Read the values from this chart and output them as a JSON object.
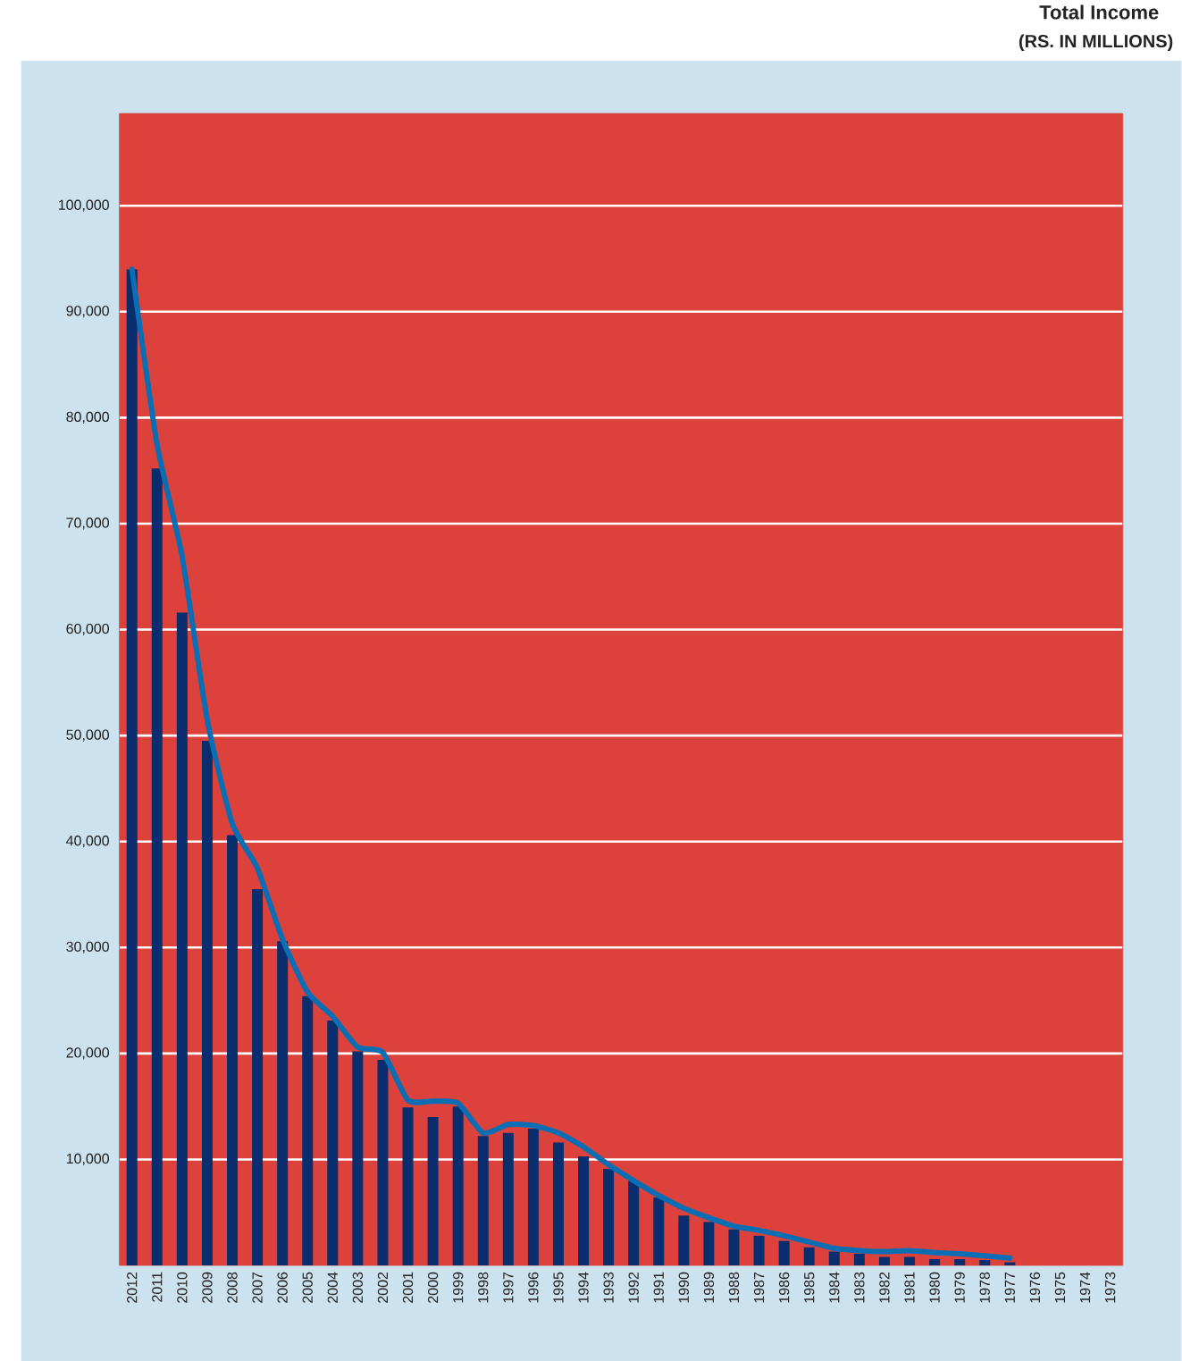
{
  "chart_data": {
    "type": "bar",
    "title": "Total Income",
    "subtitle": "(RS. IN MILLIONS)",
    "categories": [
      "2012",
      "2011",
      "2010",
      "2009",
      "2008",
      "2007",
      "2006",
      "2005",
      "2004",
      "2003",
      "2002",
      "2001",
      "2000",
      "1999",
      "1998",
      "1997",
      "1996",
      "1995",
      "1994",
      "1993",
      "1992",
      "1991",
      "1990",
      "1989",
      "1988",
      "1987",
      "1986",
      "1985",
      "1984",
      "1983",
      "1982",
      "1981",
      "1980",
      "1979",
      "1978",
      "1977",
      "1976",
      "1975",
      "1974",
      "1973"
    ],
    "series": [
      {
        "color": "#0a2d6e",
        "values": [
          94000,
          75200,
          61600,
          49500,
          40600,
          35500,
          30600,
          25400,
          23100,
          20200,
          19400,
          14900,
          14000,
          15000,
          12200,
          12500,
          12900,
          11600,
          10300,
          9100,
          8000,
          6400,
          4700,
          4100,
          3400,
          2800,
          2300,
          1700,
          1300,
          1100,
          800,
          800,
          600,
          600,
          500,
          300,
          null,
          null,
          null,
          null
        ]
      },
      {
        "type": "line",
        "color": "#0a6eb4",
        "line_style": "solid",
        "marker": "none",
        "values": [
          94000,
          77500,
          66900,
          51500,
          41700,
          37500,
          30800,
          25800,
          23500,
          20600,
          20100,
          15600,
          15500,
          15300,
          12500,
          13300,
          13200,
          12500,
          11200,
          9500,
          8000,
          6600,
          5400,
          4500,
          3700,
          3300,
          2800,
          2200,
          1600,
          1400,
          1300,
          1400,
          1200,
          1100,
          900,
          700,
          null,
          null,
          null,
          null
        ]
      }
    ],
    "ylim": [
      0,
      108700
    ],
    "yticks": [
      {
        "value": 10000,
        "label": "10,000"
      },
      {
        "value": 20000,
        "label": "20,000"
      },
      {
        "value": 30000,
        "label": "30,000"
      },
      {
        "value": 40000,
        "label": "40,000"
      },
      {
        "value": 50000,
        "label": "50,000"
      },
      {
        "value": 60000,
        "label": "60,000"
      },
      {
        "value": 70000,
        "label": "70,000"
      },
      {
        "value": 80000,
        "label": "80,000"
      },
      {
        "value": 90000,
        "label": "90,000"
      },
      {
        "value": 100000,
        "label": "100,000"
      }
    ],
    "grid": "y"
  }
}
